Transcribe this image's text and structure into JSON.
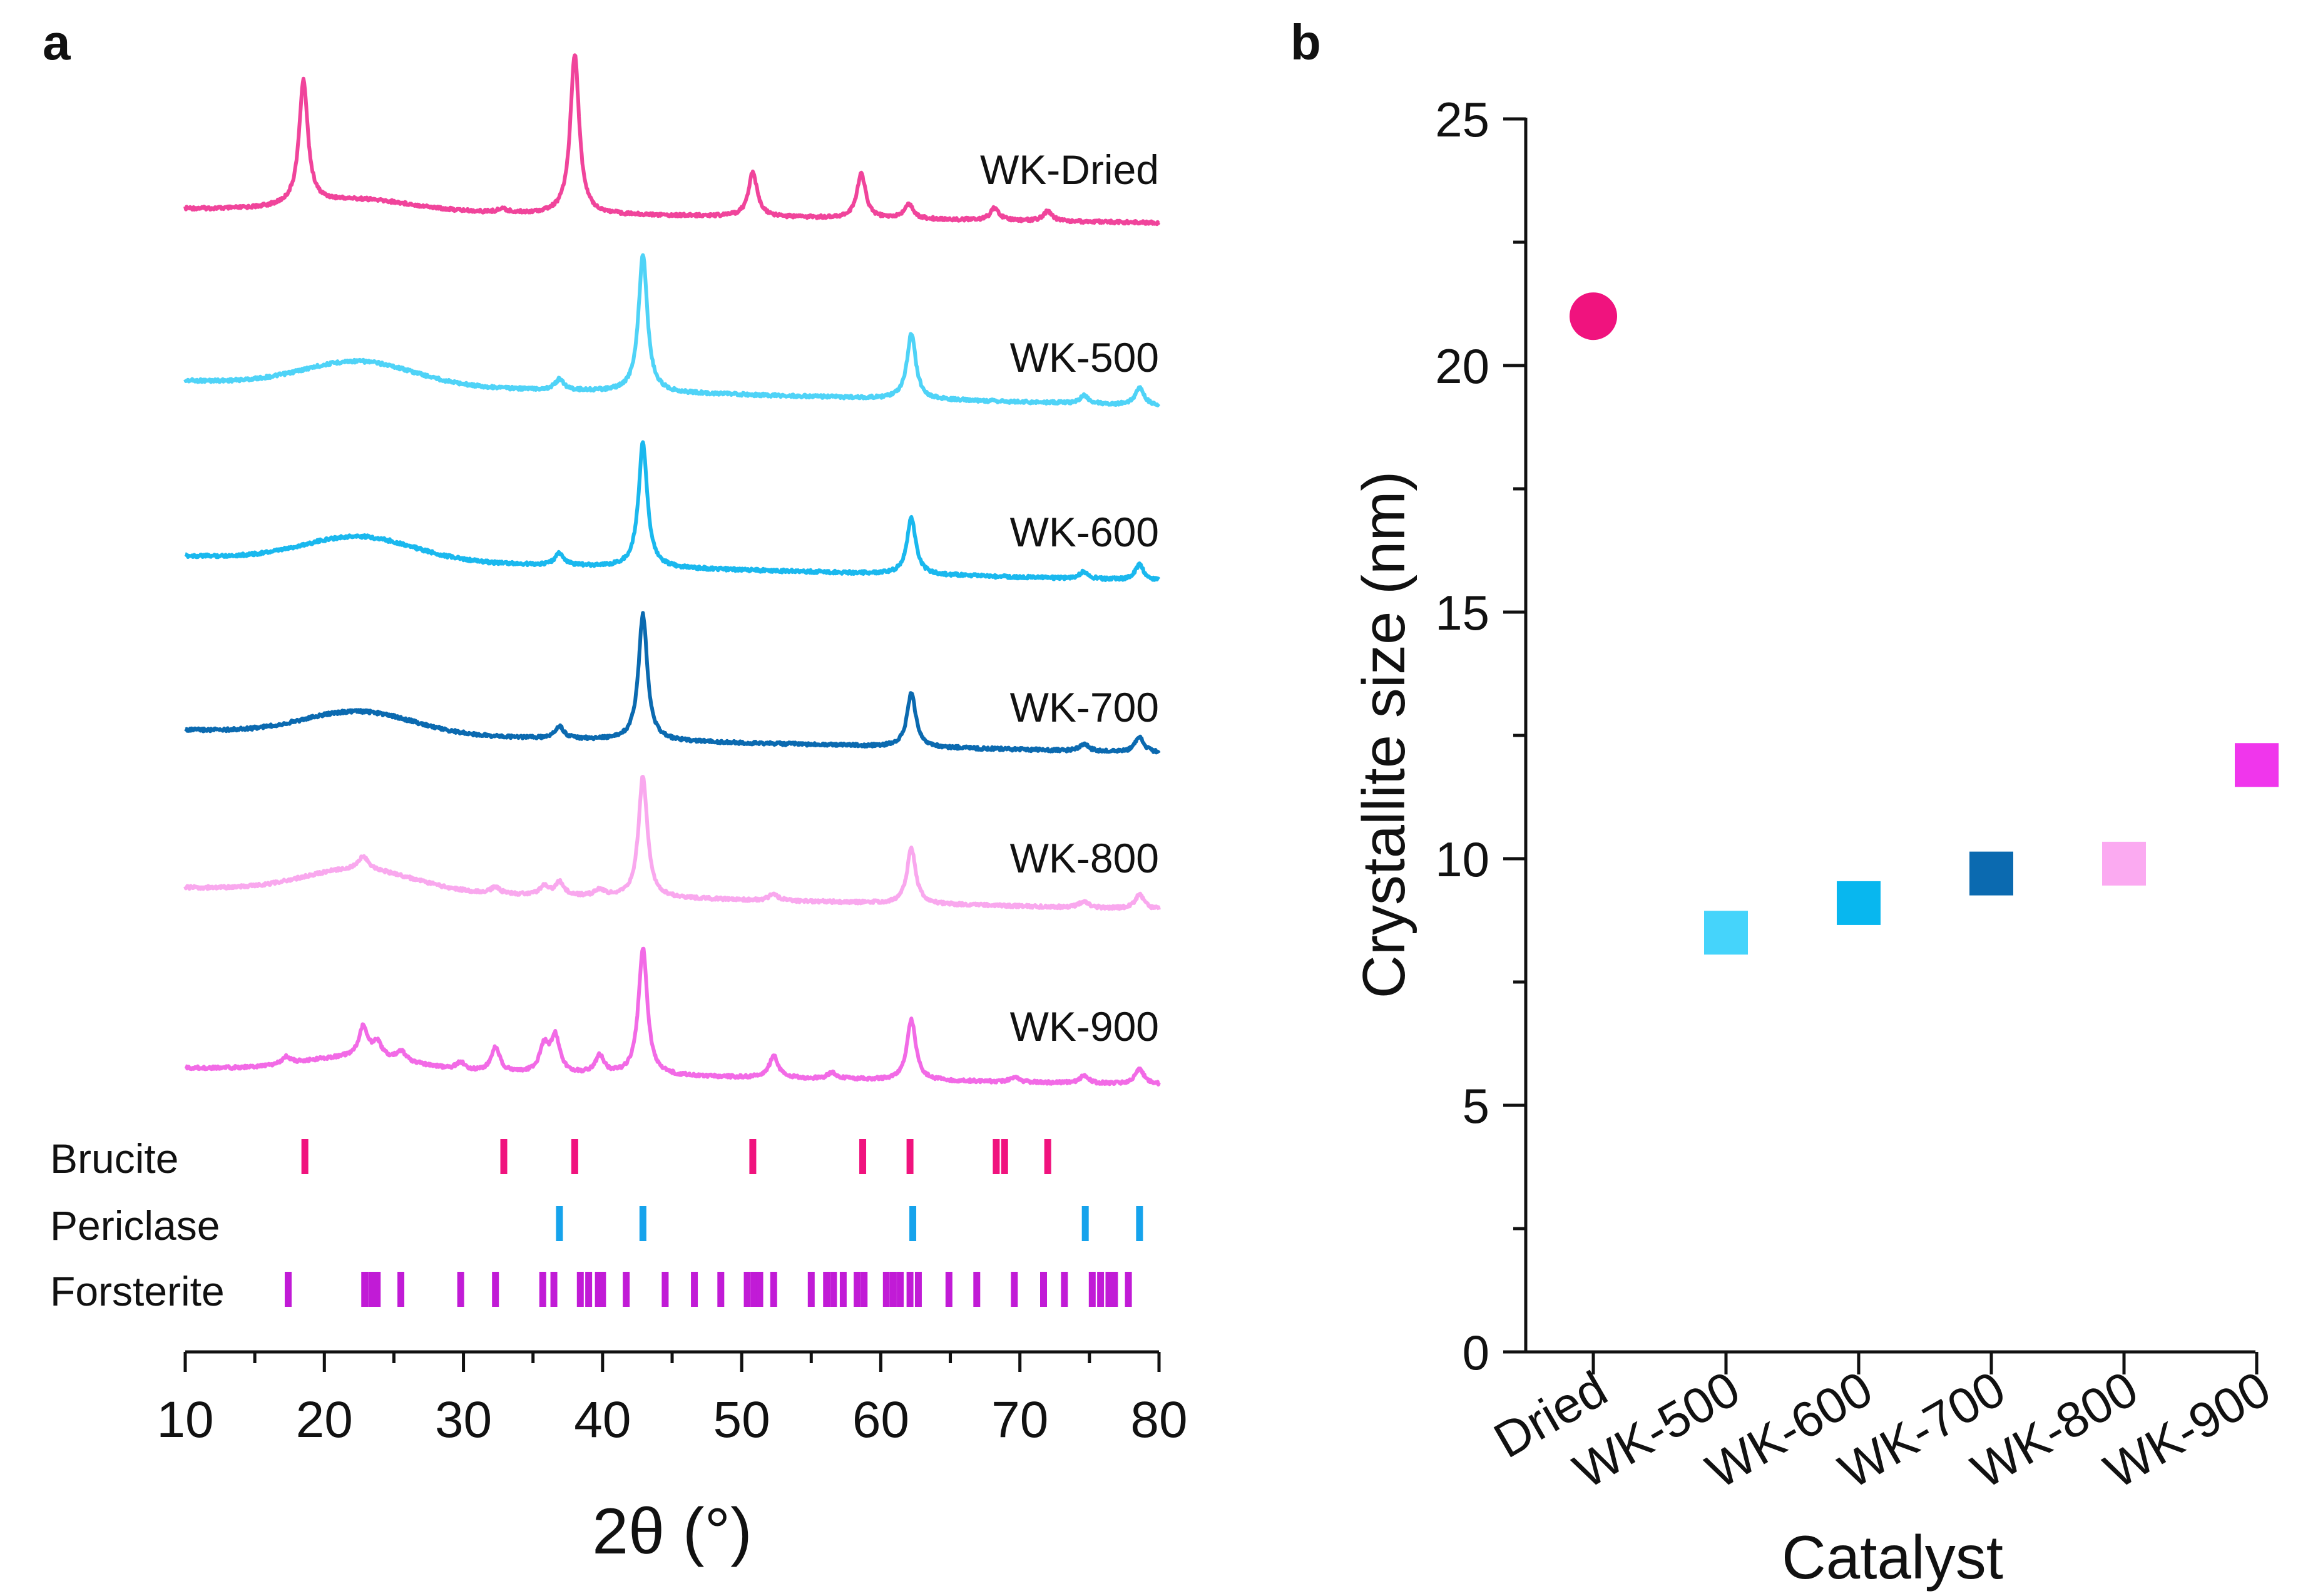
{
  "panel_a_label": "a",
  "panel_b_label": "b",
  "chart_data": [
    {
      "type": "line",
      "id": "xrd",
      "title": "",
      "xlabel": "2θ (°)",
      "ylabel": "",
      "xlim": [
        10,
        80
      ],
      "xticks": [
        "10",
        "20",
        "30",
        "40",
        "50",
        "60",
        "70",
        "80"
      ],
      "series": [
        {
          "name": "WK-Dried",
          "color": "#f0449b",
          "peaks": [
            [
              18.5,
              1.0
            ],
            [
              32.8,
              0.03
            ],
            [
              38.0,
              1.3
            ],
            [
              50.8,
              0.36
            ],
            [
              58.6,
              0.36
            ],
            [
              62.0,
              0.12
            ],
            [
              68.2,
              0.1
            ],
            [
              72.0,
              0.08
            ]
          ]
        },
        {
          "name": "WK-500",
          "color": "#4fd3f7",
          "peaks": [
            [
              36.9,
              0.08
            ],
            [
              42.9,
              1.05
            ],
            [
              62.2,
              0.5
            ],
            [
              74.6,
              0.06
            ],
            [
              78.6,
              0.13
            ]
          ]
        },
        {
          "name": "WK-600",
          "color": "#1ab8ee",
          "peaks": [
            [
              36.9,
              0.1
            ],
            [
              42.9,
              1.05
            ],
            [
              62.2,
              0.48
            ],
            [
              74.6,
              0.06
            ],
            [
              78.6,
              0.13
            ]
          ]
        },
        {
          "name": "WK-700",
          "color": "#0b6ab0",
          "peaks": [
            [
              36.9,
              0.1
            ],
            [
              42.9,
              1.05
            ],
            [
              62.2,
              0.45
            ],
            [
              74.6,
              0.06
            ],
            [
              78.6,
              0.13
            ]
          ]
        },
        {
          "name": "WK-800",
          "color": "#f9a8ee",
          "peaks": [
            [
              22.8,
              0.12
            ],
            [
              32.3,
              0.06
            ],
            [
              35.8,
              0.08
            ],
            [
              36.9,
              0.12
            ],
            [
              39.8,
              0.06
            ],
            [
              42.9,
              1.1
            ],
            [
              52.3,
              0.06
            ],
            [
              62.2,
              0.5
            ],
            [
              74.6,
              0.06
            ],
            [
              78.6,
              0.13
            ]
          ]
        },
        {
          "name": "WK-900",
          "color": "#f26ae6",
          "peaks": [
            [
              17.3,
              0.06
            ],
            [
              22.8,
              0.25
            ],
            [
              23.8,
              0.12
            ],
            [
              25.5,
              0.08
            ],
            [
              29.8,
              0.06
            ],
            [
              32.3,
              0.2
            ],
            [
              35.8,
              0.22
            ],
            [
              36.6,
              0.3
            ],
            [
              39.8,
              0.15
            ],
            [
              42.9,
              1.05
            ],
            [
              52.3,
              0.18
            ],
            [
              56.5,
              0.05
            ],
            [
              62.2,
              0.5
            ],
            [
              69.6,
              0.04
            ],
            [
              74.6,
              0.06
            ],
            [
              78.6,
              0.13
            ]
          ]
        }
      ],
      "reference_phases": [
        {
          "name": "Brucite",
          "color": "#f0137e",
          "positions": [
            18.6,
            32.9,
            38.0,
            50.8,
            58.7,
            62.1,
            68.3,
            68.9,
            72.0
          ]
        },
        {
          "name": "Periclase",
          "color": "#16a3ec",
          "positions": [
            36.9,
            42.9,
            62.3,
            74.7,
            78.6
          ]
        },
        {
          "name": "Forsterite",
          "color": "#c11bd6",
          "positions": [
            17.4,
            22.9,
            23.4,
            23.8,
            25.5,
            29.8,
            32.3,
            35.7,
            36.5,
            38.4,
            39.0,
            39.7,
            40.0,
            41.7,
            44.5,
            46.6,
            48.5,
            50.4,
            50.9,
            51.3,
            52.3,
            55.0,
            56.1,
            56.6,
            57.3,
            58.3,
            58.8,
            60.4,
            60.9,
            61.4,
            62.1,
            62.7,
            64.9,
            66.9,
            69.6,
            71.7,
            73.2,
            75.2,
            75.8,
            76.4,
            76.8,
            77.8
          ]
        }
      ]
    },
    {
      "type": "scatter",
      "id": "crystallite",
      "title": "",
      "xlabel": "Catalyst",
      "ylabel": "Crystallite size (nm)",
      "ylim": [
        0,
        25
      ],
      "yticks": [
        "0",
        "5",
        "10",
        "15",
        "20",
        "25"
      ],
      "categories": [
        "Dried",
        "WK-500",
        "WK-600",
        "WK-700",
        "WK-800",
        "WK-900"
      ],
      "values": [
        21.0,
        8.5,
        9.1,
        9.7,
        9.9,
        11.9
      ],
      "markers": [
        "circle",
        "square",
        "square",
        "square",
        "square",
        "square"
      ],
      "colors": [
        "#f0137e",
        "#45d4fb",
        "#08b7ef",
        "#0b6ab0",
        "#fbaaf1",
        "#f036ec"
      ]
    }
  ]
}
